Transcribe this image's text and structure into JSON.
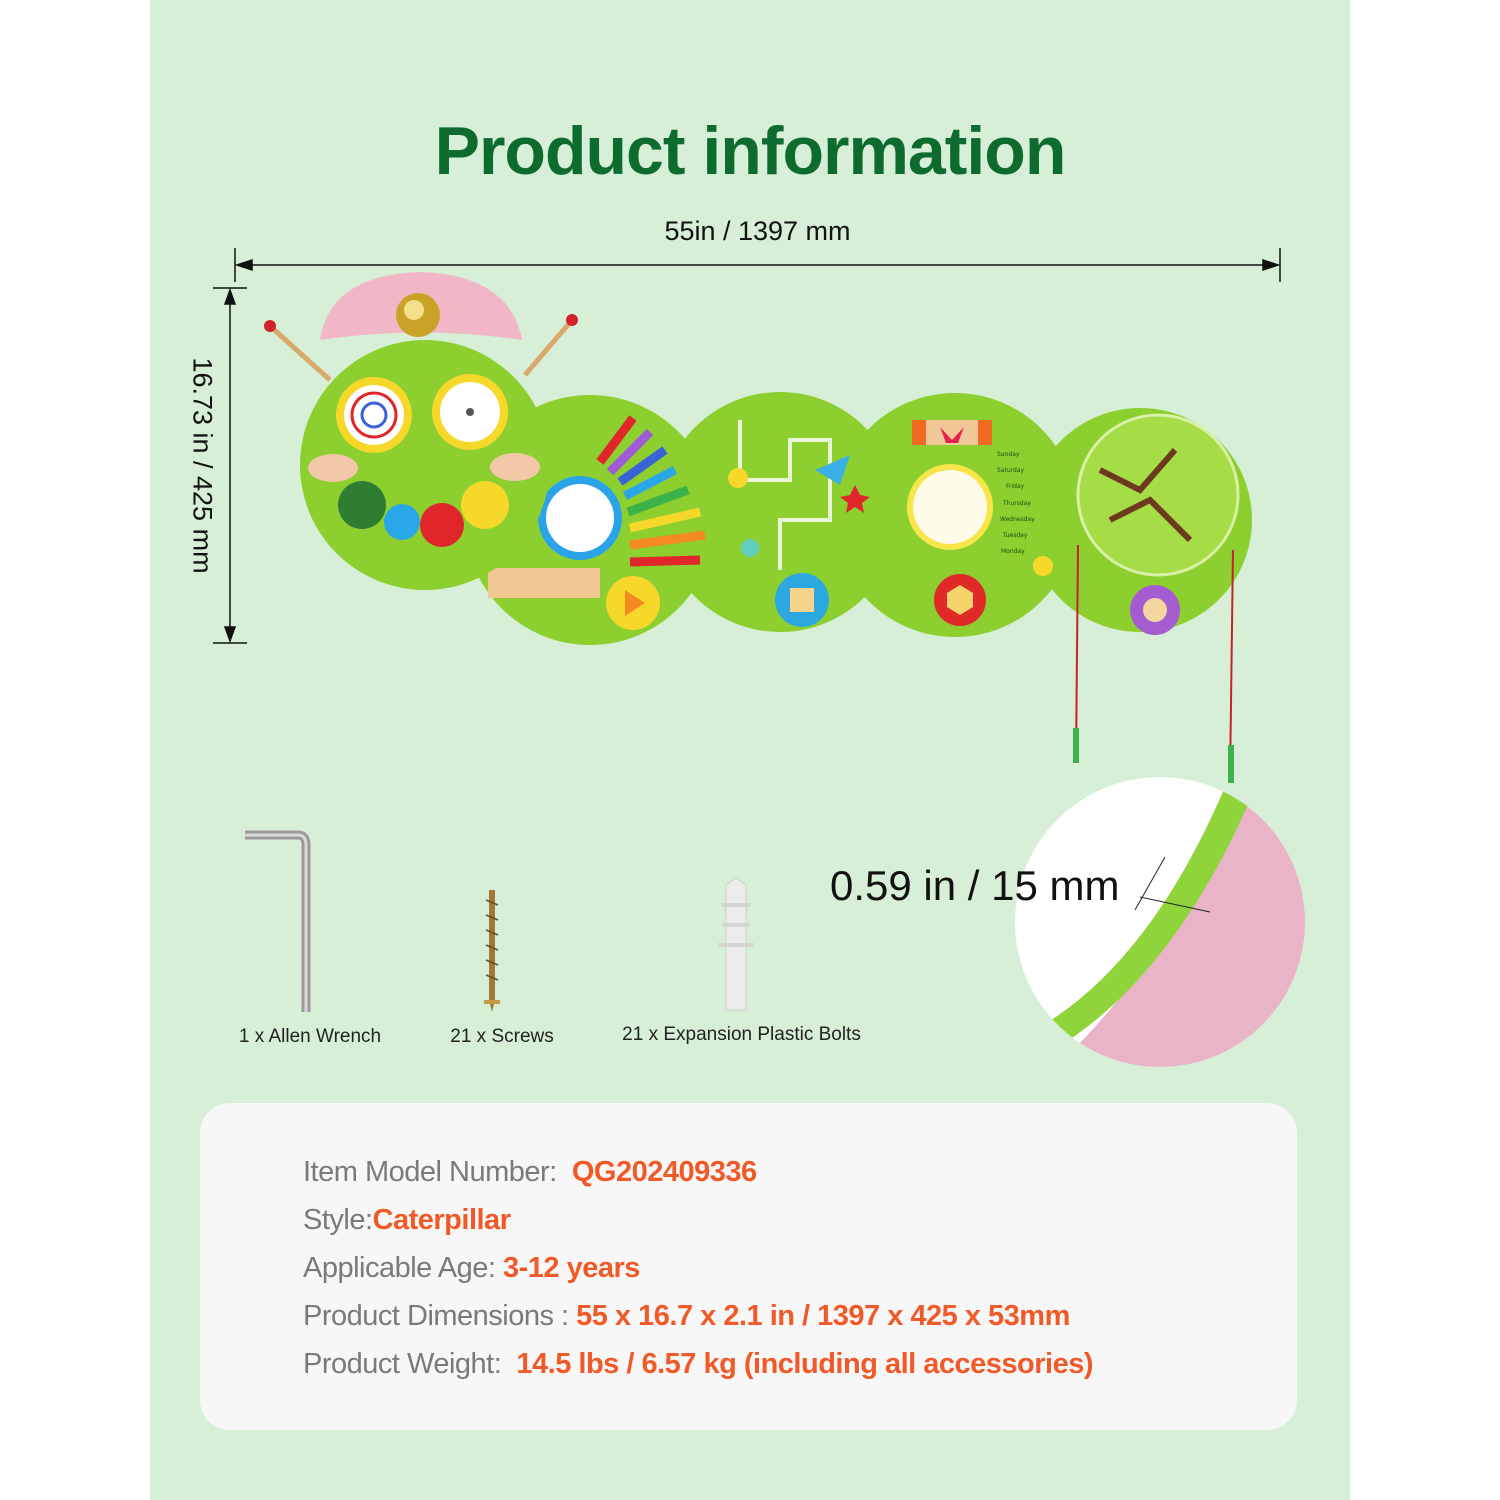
{
  "title": "Product information",
  "dimensions": {
    "width_label": "55in / 1397 mm",
    "height_label": "16.73 in / 425 mm"
  },
  "product_image": {
    "weekdays": [
      "Sunday",
      "Saturday",
      "Friday",
      "Thursday",
      "Wednesday",
      "Tuesday",
      "Monday"
    ]
  },
  "accessories": [
    {
      "label": "1 x Allen Wrench",
      "icon": "allen-wrench"
    },
    {
      "label": "21 x Screws",
      "icon": "screw"
    },
    {
      "label": "21 x Expansion Plastic Bolts",
      "icon": "plastic-bolt"
    }
  ],
  "thickness_label": "0.59 in / 15 mm",
  "specs": [
    {
      "label": "Item Model Number:  ",
      "value": "QG202409336"
    },
    {
      "label": "Style:",
      "value": "Caterpillar"
    },
    {
      "label": "Applicable Age: ",
      "value": "3-12 years"
    },
    {
      "label": "Product Dimensions : ",
      "value": "55 x 16.7 x 2.1 in / 1397 x 425 x 53mm"
    },
    {
      "label": "Product Weight:  ",
      "value": "14.5 lbs / 6.57 kg (including all accessories)"
    }
  ],
  "colors": {
    "background": "#d6efd6",
    "title": "#0d6b2f",
    "accent": "#f05a28",
    "label": "#7a7a7a"
  }
}
